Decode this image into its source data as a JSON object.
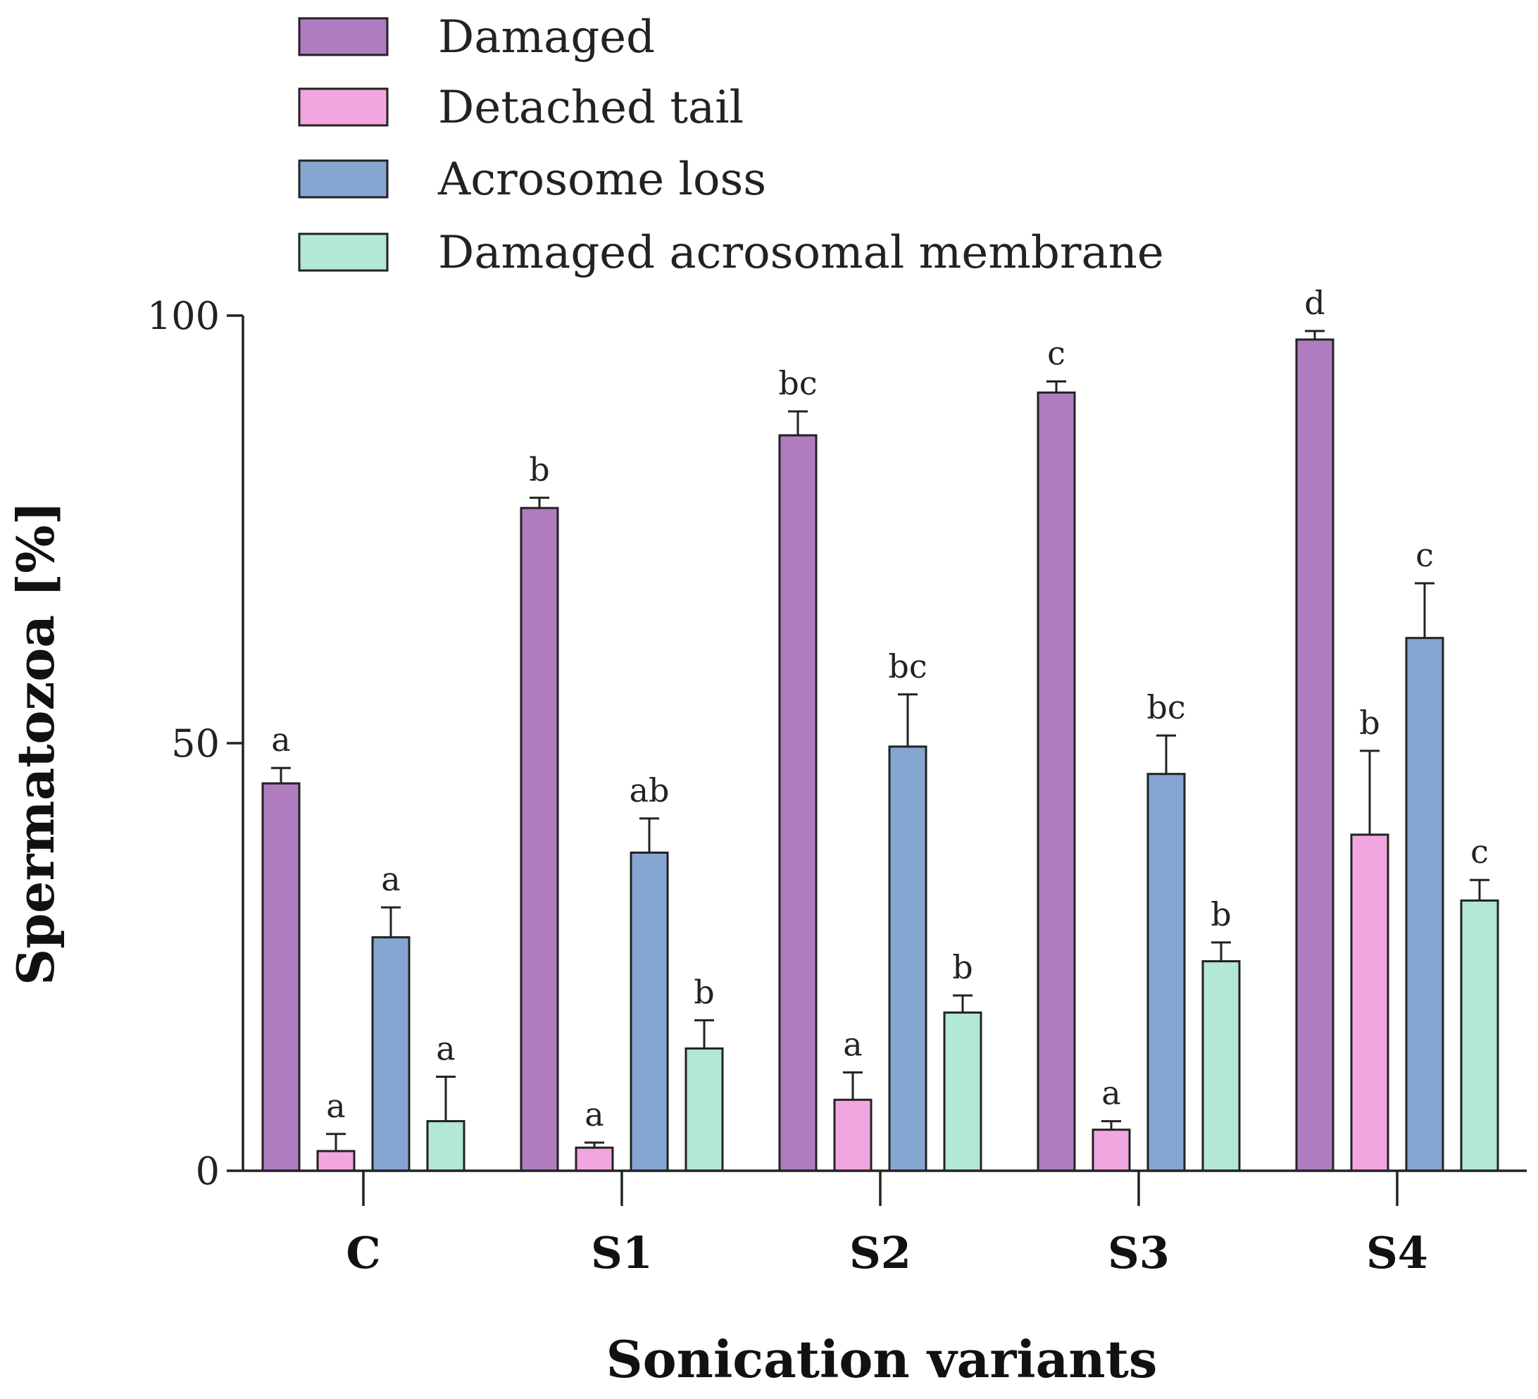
{
  "chart_data": {
    "type": "bar",
    "title": "",
    "xlabel": "Sonication variants",
    "ylabel": "Spermatozoa [%]",
    "ylim": [
      0,
      100
    ],
    "yticks": [
      0,
      50,
      100
    ],
    "categories": [
      "C",
      "S1",
      "S2",
      "S3",
      "S4"
    ],
    "series": [
      {
        "name": "Damaged",
        "color": "#B07CC0",
        "values": [
          45.3,
          77.5,
          86.0,
          91.0,
          97.2
        ],
        "errors": [
          1.8,
          1.2,
          2.8,
          1.3,
          1.0
        ],
        "labels": [
          "a",
          "b",
          "bc",
          "c",
          "d"
        ]
      },
      {
        "name": "Detached tail",
        "color": "#F2A6E0",
        "values": [
          2.3,
          2.7,
          8.3,
          4.8,
          39.3
        ],
        "errors": [
          2.0,
          0.6,
          3.2,
          1.0,
          9.8
        ],
        "labels": [
          "a",
          "a",
          "a",
          "a",
          "b"
        ]
      },
      {
        "name": "Acrosome loss",
        "color": "#86A6D2",
        "values": [
          27.3,
          37.2,
          49.6,
          46.4,
          62.3
        ],
        "errors": [
          3.5,
          4.0,
          6.1,
          4.5,
          6.4
        ],
        "labels": [
          "a",
          "ab",
          "bc",
          "bc",
          "c"
        ]
      },
      {
        "name": "Damaged acrosomal membrane",
        "color": "#B2E8D4",
        "values": [
          5.8,
          14.3,
          18.5,
          24.5,
          31.6
        ],
        "errors": [
          5.2,
          3.3,
          2.0,
          2.2,
          2.4
        ],
        "labels": [
          "a",
          "b",
          "b",
          "b",
          "c"
        ]
      }
    ],
    "legend_position": "top",
    "grid": false
  }
}
